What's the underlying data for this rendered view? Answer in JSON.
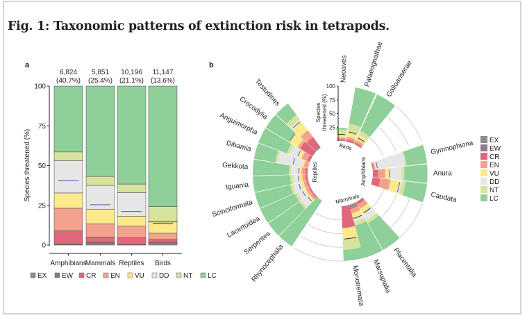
{
  "figure_title": "Fig. 1: Taxonomic patterns of extinction risk in tetrapods.",
  "categories_legend": [
    "EX",
    "EW",
    "CR",
    "EN",
    "VU",
    "DD",
    "NT",
    "LC"
  ],
  "colors": {
    "EX": "#8c8c8c",
    "EW": "#8f7a8c",
    "CR": "#e0667a",
    "EN": "#f2a18c",
    "VU": "#fbe98c",
    "DD": "#e6e6e6",
    "NT": "#d5e39c",
    "LC": "#8fcf99",
    "threat_line": "#4a5fa8",
    "threat_line_birds": "#333333"
  },
  "chart_data": [
    {
      "panel": "a",
      "type": "bar",
      "stacked": true,
      "ylabel": "Species threatened (%)",
      "ylim": [
        0,
        100
      ],
      "yticks": [
        0,
        25,
        50,
        75,
        100
      ],
      "categories": [
        "Amphibians",
        "Mammals",
        "Reptiles",
        "Birds"
      ],
      "counts": [
        "6,824",
        "5,851",
        "10,196",
        "11,147"
      ],
      "threatened_pct_labels": [
        "(40.7%)",
        "(25.4%)",
        "(21.1%)",
        "(13.6%)"
      ],
      "threatened_pct": [
        40.7,
        25.4,
        21.1,
        13.6
      ],
      "series": [
        {
          "name": "EX",
          "values": [
            0.5,
            1.3,
            0.3,
            1.4
          ]
        },
        {
          "name": "EW",
          "values": [
            0.1,
            0.2,
            0.0,
            0.1
          ]
        },
        {
          "name": "CR",
          "values": [
            8.4,
            3.5,
            4.3,
            2.0
          ]
        },
        {
          "name": "EN",
          "values": [
            14.2,
            8.4,
            7.4,
            4.0
          ]
        },
        {
          "name": "VU",
          "values": [
            9.6,
            9.2,
            6.2,
            7.0
          ]
        },
        {
          "name": "DD",
          "values": [
            20.3,
            14.9,
            14.8,
            0.5
          ]
        },
        {
          "name": "NT",
          "values": [
            5.5,
            5.7,
            5.4,
            9.3
          ]
        },
        {
          "name": "LC",
          "values": [
            41.4,
            56.8,
            61.6,
            75.7
          ]
        }
      ],
      "legend_position": "bottom"
    },
    {
      "panel": "b",
      "type": "bar",
      "polar": true,
      "stacked": true,
      "ylabel": "Species threatened (%)",
      "ylim": [
        0,
        100
      ],
      "yticks": [
        25,
        50,
        75,
        100
      ],
      "legend_position": "right",
      "groups": [
        {
          "name": "Birds",
          "orders": [
            {
              "name": "Neoaves",
              "values": {
                "EX": 1,
                "EW": 0.3,
                "CR": 2,
                "EN": 3,
                "VU": 6,
                "DD": 0.5,
                "NT": 8,
                "LC": 3
              },
              "threatened": 12
            },
            {
              "name": "Palaeognathae",
              "values": {
                "EX": 0,
                "EW": 0,
                "CR": 4,
                "EN": 5,
                "VU": 9,
                "DD": 1,
                "NT": 14,
                "LC": 67
              },
              "threatened": 18
            },
            {
              "name": "Galloanserae",
              "values": {
                "EX": 0.5,
                "EW": 0.2,
                "CR": 3,
                "EN": 5,
                "VU": 9,
                "DD": 1,
                "NT": 8,
                "LC": 73
              },
              "threatened": 13
            }
          ]
        },
        {
          "name": "Amphibians",
          "orders": [
            {
              "name": "Gymnophiona",
              "values": {
                "EX": 0,
                "EW": 0,
                "CR": 2,
                "EN": 3,
                "VU": 2,
                "DD": 53,
                "NT": 2,
                "LC": 38
              },
              "threatened": 9
            },
            {
              "name": "Anura",
              "values": {
                "EX": 0.5,
                "EW": 0.1,
                "CR": 9,
                "EN": 13,
                "VU": 9,
                "DD": 21,
                "NT": 5,
                "LC": 42
              },
              "threatened": 31
            },
            {
              "name": "Caudata",
              "values": {
                "EX": 0,
                "EW": 0,
                "CR": 14,
                "EN": 19,
                "VU": 17,
                "DD": 4,
                "NT": 7,
                "LC": 39
              },
              "threatened": 50
            }
          ]
        },
        {
          "name": "Mammals",
          "orders": [
            {
              "name": "Placentalia",
              "values": {
                "EX": 1,
                "EW": 0.2,
                "CR": 4,
                "EN": 9,
                "VU": 9,
                "DD": 15,
                "NT": 6,
                "LC": 56
              },
              "threatened": 24
            },
            {
              "name": "Marsupialia",
              "values": {
                "EX": 5,
                "EW": 0.3,
                "CR": 3,
                "EN": 8,
                "VU": 10,
                "DD": 6,
                "NT": 7,
                "LC": 61
              },
              "threatened": 26
            },
            {
              "name": "Monotremata",
              "values": {
                "EX": 0,
                "EW": 0,
                "CR": 40,
                "EN": 0,
                "VU": 20,
                "DD": 0,
                "NT": 20,
                "LC": 20
              },
              "threatened": 60
            }
          ]
        },
        {
          "name": "Reptiles",
          "orders": [
            {
              "name": "Rhynocephalia",
              "values": {
                "EX": 0,
                "EW": 0,
                "CR": 0,
                "EN": 0,
                "VU": 0,
                "DD": 0,
                "NT": 0,
                "LC": 100
              },
              "threatened": 0
            },
            {
              "name": "Serpentes",
              "values": {
                "EX": 0,
                "EW": 0,
                "CR": 3,
                "EN": 5,
                "VU": 5,
                "DD": 14,
                "NT": 4,
                "LC": 69
              },
              "threatened": 13
            },
            {
              "name": "Lacertoidea",
              "values": {
                "EX": 0,
                "EW": 0,
                "CR": 3,
                "EN": 6,
                "VU": 4,
                "DD": 13,
                "NT": 5,
                "LC": 69
              },
              "threatened": 16
            },
            {
              "name": "Scinciformata",
              "values": {
                "EX": 0,
                "EW": 0,
                "CR": 3,
                "EN": 6,
                "VU": 5,
                "DD": 15,
                "NT": 5,
                "LC": 66
              },
              "threatened": 18
            },
            {
              "name": "Iguania",
              "values": {
                "EX": 0,
                "EW": 0,
                "CR": 4,
                "EN": 6,
                "VU": 5,
                "DD": 12,
                "NT": 5,
                "LC": 68
              },
              "threatened": 17
            },
            {
              "name": "Gekkota",
              "values": {
                "EX": 0,
                "EW": 0,
                "CR": 4,
                "EN": 7,
                "VU": 5,
                "DD": 14,
                "NT": 4,
                "LC": 66
              },
              "threatened": 16
            },
            {
              "name": "Dibamia",
              "values": {
                "EX": 0,
                "EW": 0,
                "CR": 0,
                "EN": 8,
                "VU": 4,
                "DD": 45,
                "NT": 4,
                "LC": 39
              },
              "threatened": 28
            },
            {
              "name": "Anguimorpha",
              "values": {
                "EX": 0,
                "EW": 0,
                "CR": 5,
                "EN": 11,
                "VU": 6,
                "DD": 18,
                "NT": 5,
                "LC": 55
              },
              "threatened": 24
            },
            {
              "name": "Crocodylia",
              "values": {
                "EX": 0,
                "EW": 0,
                "CR": 27,
                "EN": 5,
                "VU": 18,
                "DD": 0,
                "NT": 0,
                "LC": 50
              },
              "threatened": 50
            },
            {
              "name": "Testudines",
              "values": {
                "EX": 4,
                "EW": 0,
                "CR": 20,
                "EN": 15,
                "VU": 20,
                "DD": 5,
                "NT": 10,
                "LC": 26
              },
              "threatened": 60
            }
          ]
        }
      ]
    }
  ],
  "panel_labels": {
    "a": "a",
    "b": "b"
  }
}
